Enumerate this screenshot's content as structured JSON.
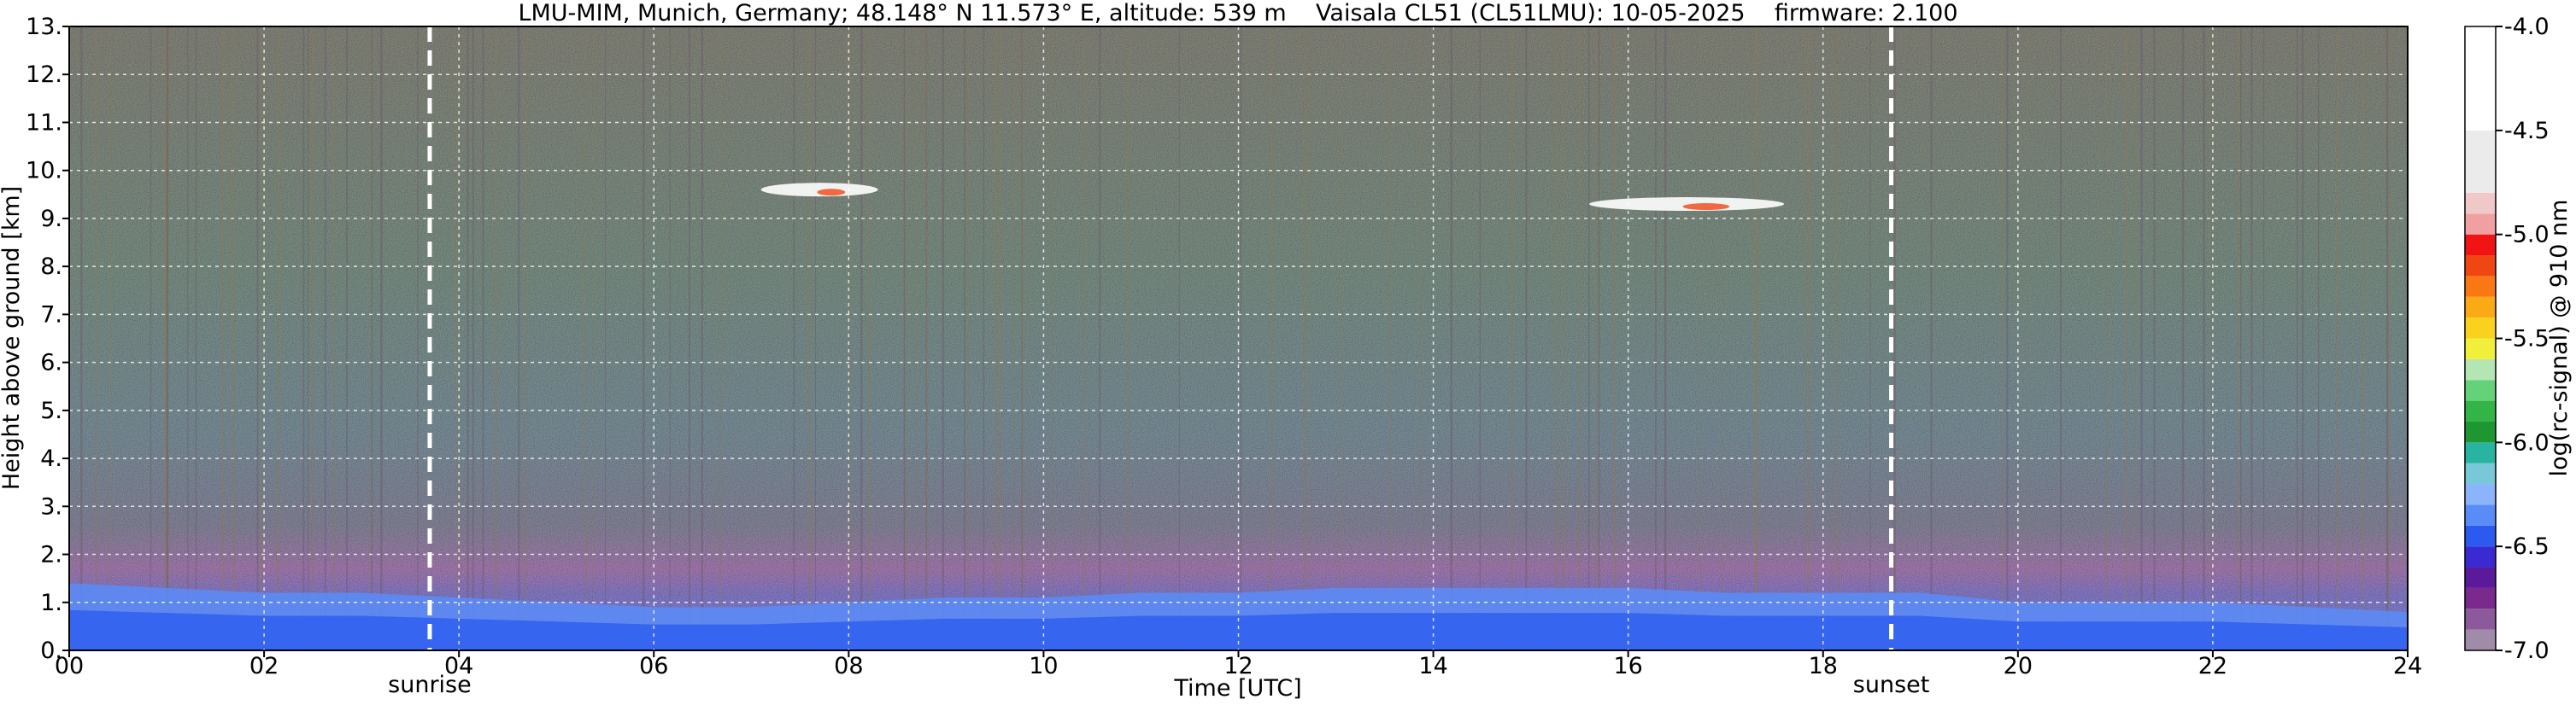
{
  "chart_data": {
    "type": "heatmap",
    "title": "LMU-MIM, Munich, Germany; 48.148° N 11.573° E, altitude: 539 m    Vaisala CL51 (CL51LMU): 10-05-2025    firmware: 2.100",
    "xlabel": "Time [UTC]",
    "ylabel": "Height above ground [km]",
    "xlim": [
      0,
      24
    ],
    "ylim": [
      0,
      13
    ],
    "x_ticks": [
      0,
      2,
      4,
      6,
      8,
      10,
      12,
      14,
      16,
      18,
      20,
      22,
      24
    ],
    "x_tick_labels": [
      "00",
      "02",
      "04",
      "06",
      "08",
      "10",
      "12",
      "14",
      "16",
      "18",
      "20",
      "22",
      "24"
    ],
    "y_ticks": [
      0,
      1,
      2,
      3,
      4,
      5,
      6,
      7,
      8,
      9,
      10,
      11,
      12,
      13
    ],
    "y_tick_labels": [
      "0.",
      "1.",
      "2.",
      "3.",
      "4.",
      "5.",
      "6.",
      "7.",
      "8.",
      "9.",
      "10.",
      "11.",
      "12.",
      "13."
    ],
    "grid": true,
    "event_lines": [
      {
        "label": "sunrise",
        "time": 3.7
      },
      {
        "label": "sunset",
        "time": 18.7
      }
    ],
    "colorbar": {
      "label": "log(rc-signal) @ 910 nm",
      "range": [
        -7.0,
        -4.0
      ],
      "ticks": [
        -7.0,
        -6.5,
        -6.0,
        -5.5,
        -5.0,
        -4.5,
        -4.0
      ],
      "tick_labels": [
        "-7.0",
        "-6.5",
        "-6.0",
        "-5.5",
        "-5.0",
        "-4.5",
        "-4.0"
      ],
      "colors": [
        "#a08ca8",
        "#8c5a9a",
        "#7a2a8c",
        "#5a1a9a",
        "#3a2ad2",
        "#2a5af0",
        "#5a8cf8",
        "#8cb4fa",
        "#78c8d8",
        "#28b4a0",
        "#1e9632",
        "#32b446",
        "#64d278",
        "#b4e6b4",
        "#f0f03c",
        "#fad21e",
        "#faaa14",
        "#fa7814",
        "#f04614",
        "#f01414",
        "#f0a0a0",
        "#f0c8c8",
        "#ebebeb",
        "#ffffff"
      ],
      "color_levels": [
        -7.0,
        -6.9,
        -6.8,
        -6.7,
        -6.6,
        -6.5,
        -6.4,
        -6.3,
        -6.2,
        -6.1,
        -6.0,
        -5.9,
        -5.8,
        -5.7,
        -5.6,
        -5.5,
        -5.4,
        -5.3,
        -5.2,
        -5.1,
        -5.0,
        -4.9,
        -4.8,
        -4.5
      ]
    },
    "clouds": [
      {
        "time_start": 7.1,
        "time_end": 8.3,
        "height_km": 9.6,
        "value": -4.5
      },
      {
        "time_start": 15.6,
        "time_end": 17.6,
        "height_km": 9.3,
        "value": -4.3
      }
    ],
    "boundary_layer": {
      "times": [
        0,
        1,
        2,
        3,
        4,
        5,
        6,
        7,
        8,
        9,
        10,
        11,
        12,
        13,
        14,
        15,
        16,
        17,
        18,
        19,
        20,
        21,
        22,
        23,
        24
      ],
      "top_km": [
        1.4,
        1.3,
        1.2,
        1.2,
        1.1,
        1.0,
        0.9,
        0.9,
        1.0,
        1.1,
        1.1,
        1.2,
        1.2,
        1.3,
        1.3,
        1.3,
        1.3,
        1.2,
        1.2,
        1.2,
        1.0,
        1.0,
        1.0,
        0.9,
        0.8
      ]
    }
  }
}
